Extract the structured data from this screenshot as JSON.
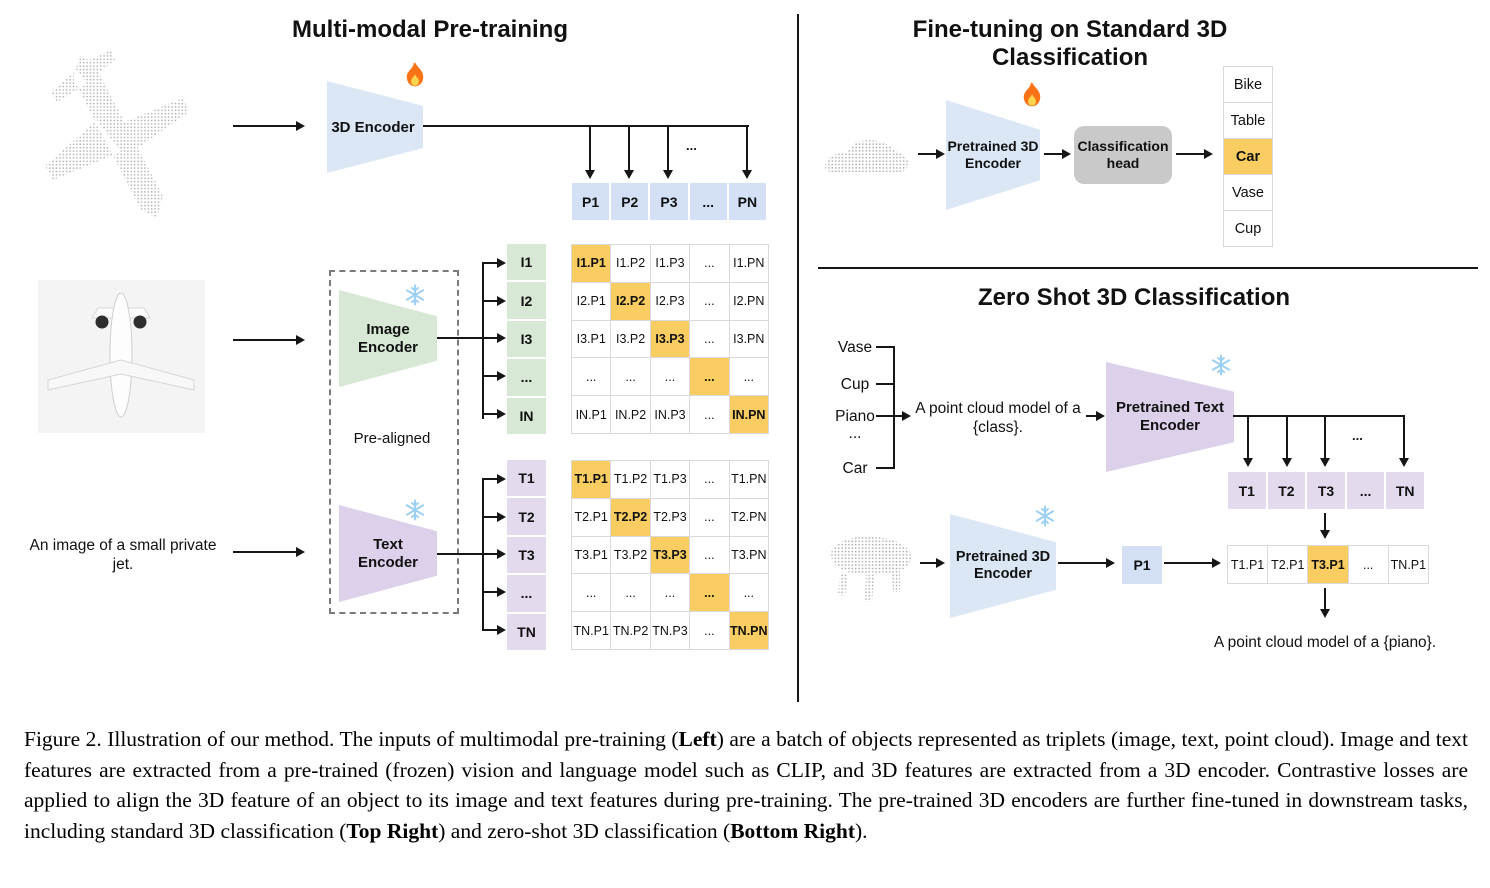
{
  "colors": {
    "highlight": "#f9cd61",
    "blue_cell": "#d3e0f5",
    "green_cell": "#d7e8d5",
    "purple_cell": "#e4daee",
    "trapezoid_blue": "#dce7f6",
    "trapezoid_purple": "#dcd0ea",
    "head_gray": "#c9c9c9"
  },
  "left": {
    "title": "Multi-modal Pre-training",
    "encoder_3d_label": "3D Encoder",
    "image_encoder_label": "Image Encoder",
    "text_encoder_label": "Text Encoder",
    "prealigned_label": "Pre-aligned",
    "image_caption": "An image of a small private jet.",
    "dots": "...",
    "p_row": {
      "cols": 5,
      "cells": [
        "P1",
        "P2",
        "P3",
        "...",
        "PN"
      ]
    },
    "i_labels": {
      "cols": 1,
      "cells": [
        "I1",
        "I2",
        "I3",
        "...",
        "IN"
      ]
    },
    "t_labels": {
      "cols": 1,
      "cells": [
        "T1",
        "T2",
        "T3",
        "...",
        "TN"
      ]
    },
    "image_matrix": {
      "cols": 5,
      "highlight": [
        0,
        6,
        12,
        18,
        24
      ],
      "cells": [
        "I1.P1",
        "I1.P2",
        "I1.P3",
        "...",
        "I1.PN",
        "I2.P1",
        "I2.P2",
        "I2.P3",
        "...",
        "I2.PN",
        "I3.P1",
        "I3.P2",
        "I3.P3",
        "...",
        "I3.PN",
        "...",
        "...",
        "...",
        "...",
        "...",
        "IN.P1",
        "IN.P2",
        "IN.P3",
        "...",
        "IN.PN"
      ]
    },
    "text_matrix": {
      "cols": 5,
      "highlight": [
        0,
        6,
        12,
        18,
        24
      ],
      "cells": [
        "T1.P1",
        "T1.P2",
        "T1.P3",
        "...",
        "T1.PN",
        "T2.P1",
        "T2.P2",
        "T2.P3",
        "...",
        "T2.PN",
        "T3.P1",
        "T3.P2",
        "T3.P3",
        "...",
        "T3.PN",
        "...",
        "...",
        "...",
        "...",
        "...",
        "TN.P1",
        "TN.P2",
        "TN.P3",
        "...",
        "TN.PN"
      ]
    }
  },
  "top_right": {
    "title": "Fine-tuning on Standard 3D Classification",
    "encoder_label": "Pretrained 3D Encoder",
    "head_label": "Classification head",
    "classes": {
      "cols": 1,
      "highlight": [
        2
      ],
      "cells": [
        "Bike",
        "Table",
        "Car",
        "Vase",
        "Cup"
      ]
    }
  },
  "bottom_right": {
    "title": "Zero Shot 3D Classification",
    "class_list": [
      "Vase",
      "Cup",
      "Piano",
      "...",
      "Car"
    ],
    "prompt": "A point cloud model of a {class}.",
    "text_encoder_label": "Pretrained Text Encoder",
    "encoder_3d_label": "Pretrained 3D Encoder",
    "p1_label": "P1",
    "dots": "...",
    "t_row": {
      "cols": 5,
      "cells": [
        "T1",
        "T2",
        "T3",
        "...",
        "TN"
      ]
    },
    "result_row": {
      "cols": 5,
      "highlight": [
        2
      ],
      "cells": [
        "T1.P1",
        "T2.P1",
        "T3.P1",
        "...",
        "TN.P1"
      ]
    },
    "result_text": "A point cloud model of a {piano}."
  },
  "caption": {
    "segments": [
      {
        "t": "Figure 2. Illustration of our method. The inputs of multimodal pre-training ("
      },
      {
        "t": "Left",
        "b": true
      },
      {
        "t": ") are a batch of objects represented as triplets (image, text, point cloud).  Image and text features are extracted from a pre-trained (frozen) vision and language model such as CLIP, and 3D features are extracted from a 3D encoder.  Contrastive losses are applied to align the 3D feature of an object to its image and text features during pre-training. The pre-trained 3D encoders are further fine-tuned in downstream tasks, including standard 3D classification ("
      },
      {
        "t": "Top Right",
        "b": true
      },
      {
        "t": ") and zero-shot 3D classification ("
      },
      {
        "t": "Bottom Right",
        "b": true
      },
      {
        "t": ")."
      }
    ]
  }
}
